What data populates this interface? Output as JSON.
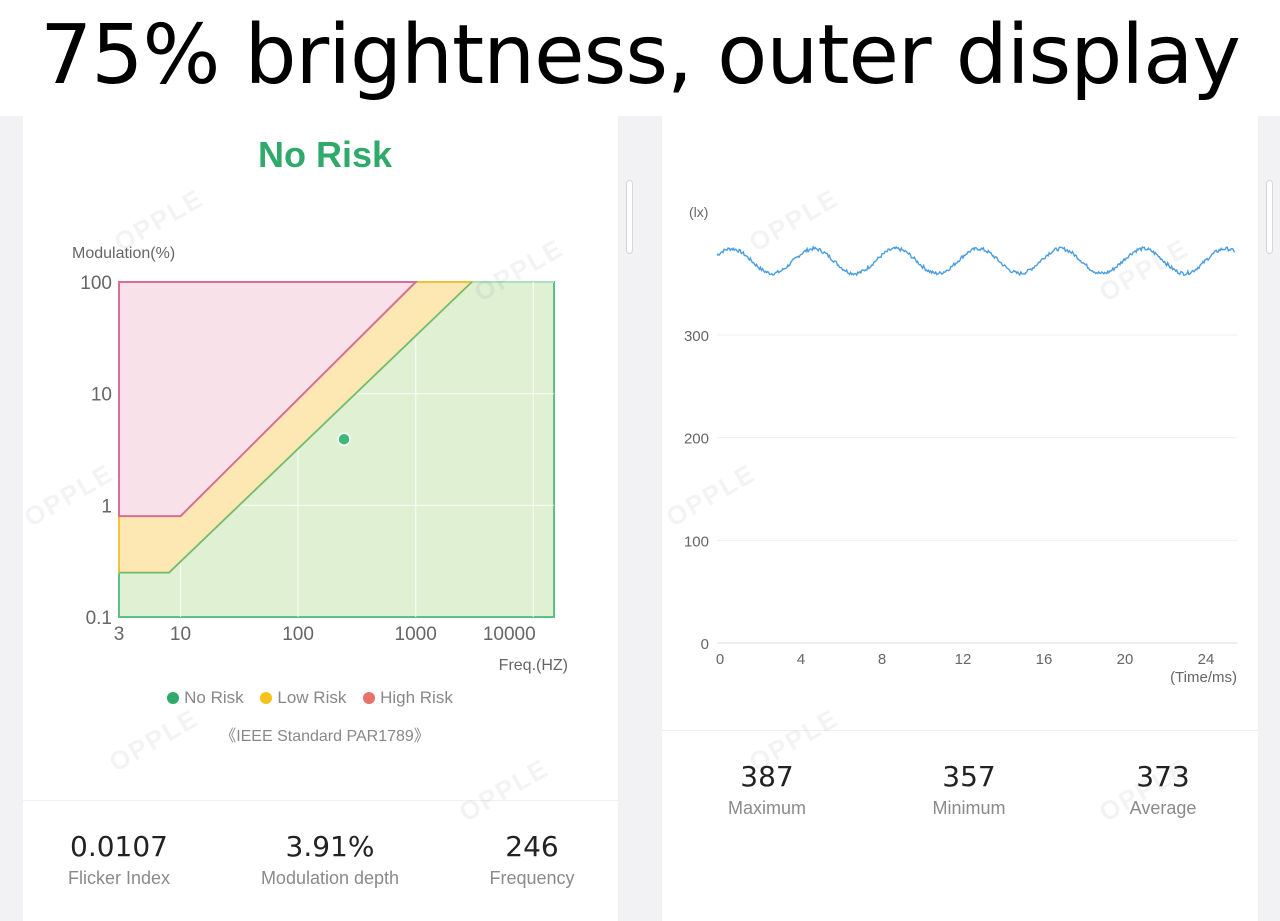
{
  "title": "75% brightness, outer display",
  "watermark": "OPPLE",
  "risk_chart": {
    "status": "No Risk",
    "status_color": "#2faa6a",
    "ylabel": "Modulation(%)",
    "xlabel": "Freq.(HZ)",
    "y_ticks": [
      "100",
      "10",
      "1",
      "0.1"
    ],
    "x_ticks": [
      "3",
      "10",
      "100",
      "1000",
      "10000"
    ],
    "legend": [
      {
        "label": "No Risk",
        "color": "#2faa6a"
      },
      {
        "label": "Low Risk",
        "color": "#f5c21b"
      },
      {
        "label": "High Risk",
        "color": "#e8716b"
      }
    ],
    "standard": "《IEEE Standard PAR1789》"
  },
  "risk_stats": [
    {
      "value": "0.0107",
      "label": "Flicker Index"
    },
    {
      "value": "3.91%",
      "label": "Modulation depth"
    },
    {
      "value": "246",
      "label": "Frequency"
    }
  ],
  "waveform_chart": {
    "ylabel": "(lx)",
    "xlabel": "(Time/ms)",
    "y_ticks": [
      "300",
      "200",
      "100",
      "0"
    ],
    "x_ticks": [
      "0",
      "4",
      "8",
      "12",
      "16",
      "20",
      "24"
    ],
    "line_color": "#4a9de0"
  },
  "wave_stats": [
    {
      "value": "387",
      "label": "Maximum"
    },
    {
      "value": "357",
      "label": "Minimum"
    },
    {
      "value": "373",
      "label": "Average"
    }
  ],
  "chart_data": [
    {
      "type": "area",
      "xlabel": "Freq.(HZ)",
      "ylabel": "Modulation(%)",
      "x_scale": "log",
      "y_scale": "log",
      "xlim": [
        3,
        15000
      ],
      "ylim": [
        0.1,
        100
      ],
      "series": [
        {
          "name": "High Risk",
          "x": [
            3,
            10,
            1000
          ],
          "y": [
            0.8,
            0.8,
            100
          ]
        },
        {
          "name": "Low Risk",
          "x": [
            3,
            8,
            3000
          ],
          "y": [
            0.25,
            0.25,
            100
          ]
        },
        {
          "name": "No Risk",
          "x": [
            3,
            15000
          ],
          "y": [
            0.1,
            100
          ]
        }
      ],
      "points": [
        {
          "x": 246,
          "y": 3.91
        }
      ]
    },
    {
      "type": "line",
      "xlabel": "(Time/ms)",
      "ylabel": "(lx)",
      "xlim": [
        0,
        25.6
      ],
      "ylim": [
        0,
        400
      ],
      "period_ms": 4.07,
      "series": [
        {
          "max": 387,
          "min": 357,
          "average": 373
        }
      ]
    }
  ]
}
